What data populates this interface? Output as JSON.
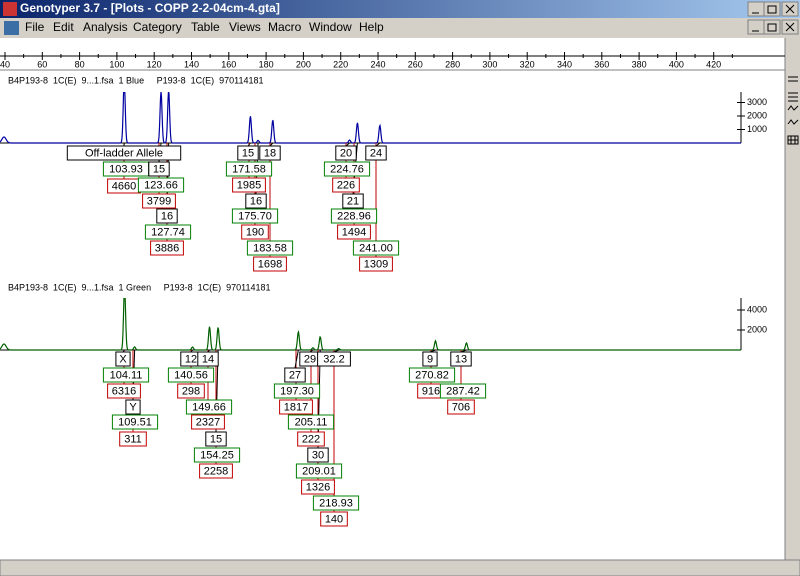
{
  "window": {
    "title": "Genotyper 3.7  - [Plots - COPP 2-2-04cm-4.gta]",
    "menu": [
      "File",
      "Edit",
      "Analysis",
      "Category",
      "Table",
      "Views",
      "Macro",
      "Window",
      "Help"
    ]
  },
  "ruler": {
    "ticks": [
      40,
      60,
      80,
      100,
      120,
      140,
      160,
      180,
      200,
      220,
      240,
      260,
      280,
      300,
      320,
      340,
      360,
      380,
      400,
      420
    ]
  },
  "panels": [
    {
      "header": "B4P193-8  1C(E)  9...1.fsa  1 Blue     P193-8  1C(E)  970114181",
      "yticks": [
        3000,
        2000,
        1000
      ],
      "alleles": [
        {
          "label": "Off-ladder Allele",
          "size": "103.93",
          "height": "4660"
        },
        {
          "label": "15",
          "size": "123.66",
          "height": "3799"
        },
        {
          "label": "16",
          "size": "127.74",
          "height": "3886"
        },
        {
          "label": "15",
          "size": "171.58",
          "height": "1985"
        },
        {
          "label": "16",
          "size": "175.70",
          "height": "190"
        },
        {
          "label": "18",
          "size": "183.58",
          "height": "1698"
        },
        {
          "label": "20",
          "size": "224.76",
          "height": "226"
        },
        {
          "label": "21",
          "size": "228.96",
          "height": "1494"
        },
        {
          "label": "24",
          "size": "241.00",
          "height": "1309"
        }
      ]
    },
    {
      "header": "B4P193-8  1C(E)  9...1.fsa  1 Green     P193-8  1C(E)  970114181",
      "yticks": [
        4000,
        2000
      ],
      "alleles": [
        {
          "label": "X",
          "size": "104.11",
          "height": "6316"
        },
        {
          "label": "Y",
          "size": "109.51",
          "height": "311"
        },
        {
          "label": "12",
          "size": "140.56",
          "height": "298"
        },
        {
          "label": "14",
          "size": "149.66",
          "height": "2327"
        },
        {
          "label": "15",
          "size": "154.25",
          "height": "2258"
        },
        {
          "label": "27",
          "size": "197.30",
          "height": "1817"
        },
        {
          "label": "29",
          "size": "205.11",
          "height": "222"
        },
        {
          "label": "30",
          "size": "209.01",
          "height": "1326"
        },
        {
          "label": "32.2",
          "size": "218.93",
          "height": "140"
        },
        {
          "label": "9",
          "size": "270.82",
          "height": "916"
        },
        {
          "label": "13",
          "size": "287.42",
          "height": "706"
        }
      ]
    }
  ]
}
